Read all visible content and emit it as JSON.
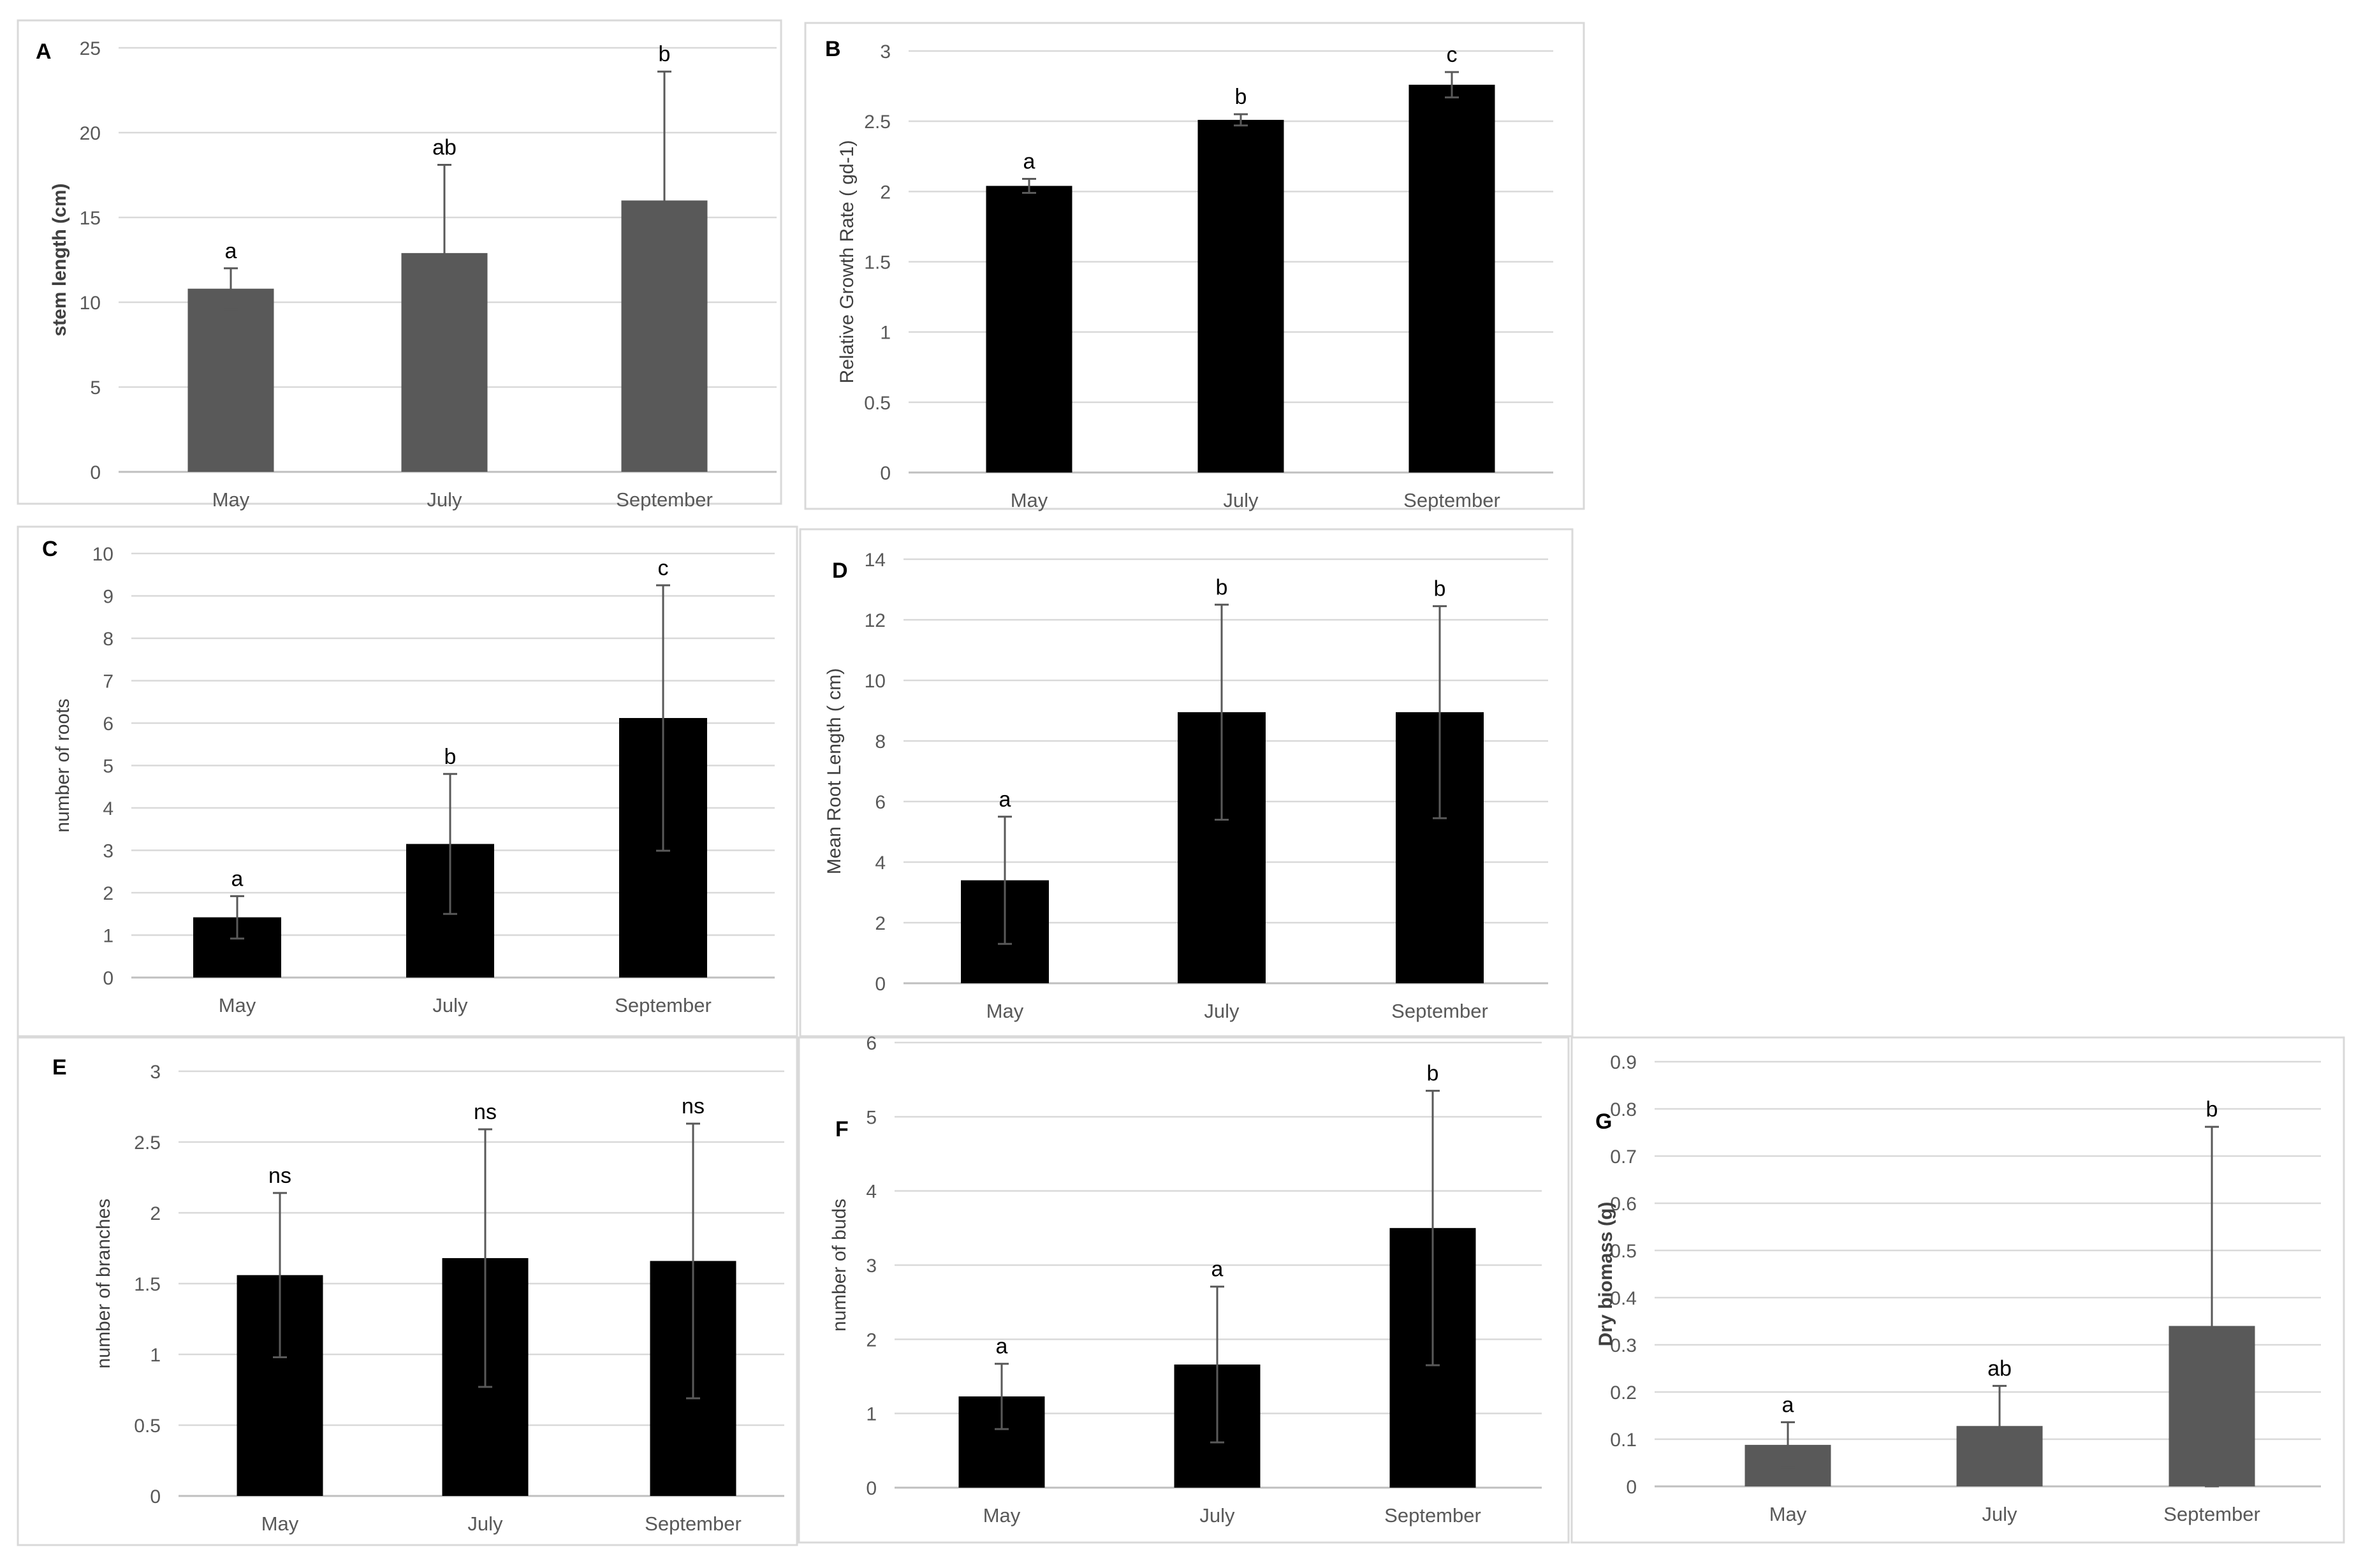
{
  "chart_data": [
    {
      "type": "bar",
      "panel": "A",
      "categories": [
        "May",
        "July",
        "September"
      ],
      "values": [
        10.8,
        12.9,
        16.0
      ],
      "errors": [
        1.2,
        5.2,
        7.6
      ],
      "significance": [
        "a",
        "ab",
        "b"
      ],
      "ylabel": "stem length (cm)",
      "ylabel_bold": true,
      "ylim": [
        0,
        25
      ],
      "yticks": [
        "0",
        "5",
        "10",
        "15",
        "20",
        "25"
      ],
      "bar_color": "#595959",
      "grid": true
    },
    {
      "type": "bar",
      "panel": "B",
      "categories": [
        "May",
        "July",
        "September"
      ],
      "values": [
        2.04,
        2.51,
        2.76
      ],
      "errors": [
        0.05,
        0.04,
        0.09
      ],
      "significance": [
        "a",
        "b",
        "c"
      ],
      "ylabel": "Relative Growth Rate ( gd-1)",
      "ylabel_bold": false,
      "ylim": [
        0,
        3
      ],
      "yticks": [
        "0",
        "0.5",
        "1",
        "1.5",
        "2",
        "2.5",
        "3"
      ],
      "bar_color": "#000000",
      "grid": true
    },
    {
      "type": "bar",
      "panel": "C",
      "categories": [
        "May",
        "July",
        "September"
      ],
      "values": [
        1.42,
        3.15,
        6.12
      ],
      "errors": [
        0.5,
        1.65,
        3.13
      ],
      "significance": [
        "a",
        "b",
        "c"
      ],
      "ylabel": "number of roots",
      "ylabel_bold": false,
      "ylim": [
        0,
        10
      ],
      "yticks": [
        "0",
        "1",
        "2",
        "3",
        "4",
        "5",
        "6",
        "7",
        "8",
        "9",
        "10"
      ],
      "bar_color": "#000000",
      "grid": true
    },
    {
      "type": "bar",
      "panel": "D",
      "categories": [
        "May",
        "July",
        "September"
      ],
      "values": [
        3.4,
        8.95,
        8.95
      ],
      "errors": [
        2.1,
        3.55,
        3.5
      ],
      "significance": [
        "a",
        "b",
        "b"
      ],
      "ylabel": "Mean Root Length ( cm)",
      "ylabel_bold": false,
      "ylim": [
        0,
        14
      ],
      "yticks": [
        "0",
        "2",
        "4",
        "6",
        "8",
        "10",
        "12",
        "14"
      ],
      "bar_color": "#000000",
      "grid": true
    },
    {
      "type": "bar",
      "panel": "E",
      "categories": [
        "May",
        "July",
        "September"
      ],
      "values": [
        1.56,
        1.68,
        1.66
      ],
      "errors": [
        0.58,
        0.91,
        0.97
      ],
      "significance": [
        "ns",
        "ns",
        "ns"
      ],
      "ylabel": "number of branches",
      "ylabel_bold": false,
      "ylim": [
        0,
        3
      ],
      "yticks": [
        "0",
        "0.5",
        "1",
        "1.5",
        "2",
        "2.5",
        "3"
      ],
      "bar_color": "#000000",
      "grid": true
    },
    {
      "type": "bar",
      "panel": "F",
      "categories": [
        "May",
        "July",
        "September"
      ],
      "values": [
        1.23,
        1.66,
        3.5
      ],
      "errors": [
        0.44,
        1.05,
        1.85
      ],
      "significance": [
        "a",
        "a",
        "b"
      ],
      "ylabel": "number of buds",
      "ylabel_bold": false,
      "ylim": [
        0,
        6
      ],
      "yticks": [
        "0",
        "1",
        "2",
        "3",
        "4",
        "5",
        "6"
      ],
      "bar_color": "#000000",
      "grid": true
    },
    {
      "type": "bar",
      "panel": "G",
      "categories": [
        "May",
        "July",
        "September"
      ],
      "values": [
        0.088,
        0.128,
        0.34
      ],
      "errors": [
        0.048,
        0.085,
        0.422
      ],
      "significance": [
        "a",
        "ab",
        "b"
      ],
      "ylabel": "Dry biomass (g)",
      "ylabel_bold": true,
      "ylim": [
        0,
        0.9
      ],
      "yticks": [
        "0",
        "0.1",
        "0.2",
        "0.3",
        "0.4",
        "0.5",
        "0.6",
        "0.7",
        "0.8",
        "0.9"
      ],
      "bar_color": "#595959",
      "grid": true
    }
  ]
}
